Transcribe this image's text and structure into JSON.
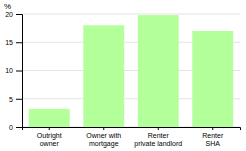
{
  "chart_data": {
    "type": "bar",
    "categories": [
      "Outright\nowner",
      "Owner with\nmortgage",
      "Renter\nprivate landlord",
      "Renter\nSHA"
    ],
    "values": [
      3.2,
      18.0,
      19.8,
      17.0
    ],
    "color": "#b3ff99",
    "ylabel": "%",
    "ylim": [
      0,
      20
    ],
    "yticks": [
      0,
      5,
      10,
      15,
      20
    ],
    "grid": true
  }
}
